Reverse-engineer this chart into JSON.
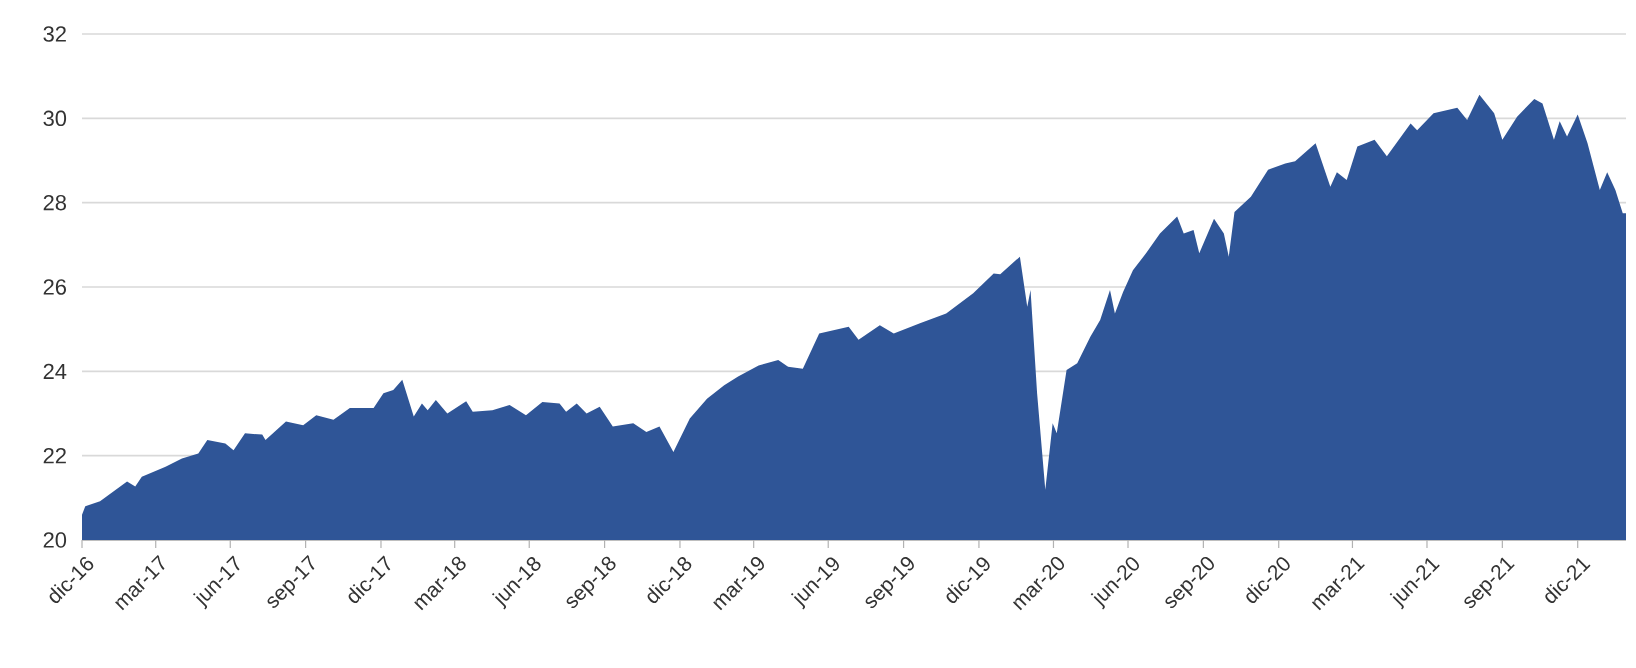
{
  "chart_data": {
    "type": "area",
    "color": "#2f5597",
    "grid": "y",
    "x": [
      "2016-12-31",
      "2017-01-04",
      "2017-01-22",
      "2017-02-24",
      "2017-03-06",
      "2017-03-14",
      "2017-04-12",
      "2017-05-02",
      "2017-05-22",
      "2017-06-02",
      "2017-06-24",
      "2017-07-04",
      "2017-07-18",
      "2017-08-08",
      "2017-08-12",
      "2017-09-06",
      "2017-09-27",
      "2017-10-13",
      "2017-11-03",
      "2017-11-23",
      "2017-12-22",
      "2018-01-03",
      "2018-01-15",
      "2018-01-26",
      "2018-02-09",
      "2018-02-19",
      "2018-02-26",
      "2018-03-08",
      "2018-03-22",
      "2018-04-14",
      "2018-04-22",
      "2018-05-16",
      "2018-06-06",
      "2018-06-26",
      "2018-07-16",
      "2018-08-06",
      "2018-08-14",
      "2018-08-27",
      "2018-09-08",
      "2018-09-24",
      "2018-10-10",
      "2018-11-04",
      "2018-11-20",
      "2018-12-06",
      "2018-12-23",
      "2019-01-12",
      "2019-02-02",
      "2019-02-23",
      "2019-03-12",
      "2019-04-06",
      "2019-04-30",
      "2019-05-12",
      "2019-05-30",
      "2019-06-19",
      "2019-07-25",
      "2019-08-06",
      "2019-09-01",
      "2019-09-18",
      "2019-10-20",
      "2019-11-21",
      "2019-12-24",
      "2020-01-18",
      "2020-01-26",
      "2020-02-19",
      "2020-02-28",
      "2020-03-03",
      "2020-03-11",
      "2020-03-21",
      "2020-03-30",
      "2020-04-04",
      "2020-04-16",
      "2020-04-29",
      "2020-05-15",
      "2020-05-27",
      "2020-06-08",
      "2020-06-14",
      "2020-06-24",
      "2020-07-06",
      "2020-07-22",
      "2020-08-08",
      "2020-08-29",
      "2020-09-06",
      "2020-09-18",
      "2020-09-25",
      "2020-10-13",
      "2020-10-25",
      "2020-10-31",
      "2020-11-07",
      "2020-11-27",
      "2020-12-18",
      "2021-01-08",
      "2021-01-20",
      "2021-02-14",
      "2021-03-04",
      "2021-03-12",
      "2021-03-24",
      "2021-04-06",
      "2021-04-27",
      "2021-05-12",
      "2021-06-10",
      "2021-06-18",
      "2021-07-08",
      "2021-08-06",
      "2021-08-18",
      "2021-09-02",
      "2021-09-20",
      "2021-09-30",
      "2021-10-18",
      "2021-11-08",
      "2021-11-18",
      "2021-12-02",
      "2021-12-09",
      "2021-12-18",
      "2021-12-31",
      "2022-01-12",
      "2022-01-27",
      "2022-02-05",
      "2022-02-15",
      "2022-02-24",
      "2022-02-28"
    ],
    "values": [
      20.6,
      20.8,
      20.92,
      21.39,
      21.27,
      21.5,
      21.74,
      21.93,
      22.05,
      22.37,
      22.29,
      22.13,
      22.53,
      22.5,
      22.37,
      22.81,
      22.72,
      22.96,
      22.85,
      23.13,
      23.13,
      23.48,
      23.56,
      23.8,
      22.93,
      23.24,
      23.08,
      23.32,
      23.0,
      23.29,
      23.04,
      23.08,
      23.2,
      22.96,
      23.27,
      23.24,
      23.04,
      23.24,
      23.0,
      23.16,
      22.69,
      22.77,
      22.56,
      22.69,
      22.09,
      22.88,
      23.35,
      23.67,
      23.88,
      24.14,
      24.27,
      24.11,
      24.06,
      24.9,
      25.06,
      24.75,
      25.09,
      24.9,
      25.14,
      25.37,
      25.85,
      26.32,
      26.3,
      26.72,
      25.53,
      25.93,
      23.48,
      21.19,
      22.77,
      22.53,
      24.03,
      24.19,
      24.82,
      25.22,
      25.93,
      25.37,
      25.88,
      26.4,
      26.8,
      27.27,
      27.67,
      27.27,
      27.35,
      26.8,
      27.62,
      27.27,
      26.72,
      27.78,
      28.14,
      28.78,
      28.93,
      28.98,
      29.41,
      28.38,
      28.72,
      28.54,
      29.33,
      29.49,
      29.1,
      29.88,
      29.72,
      30.12,
      30.25,
      29.96,
      30.56,
      30.12,
      29.49,
      30.04,
      30.46,
      30.35,
      29.49,
      29.93,
      29.57,
      30.09,
      29.41,
      28.3,
      28.72,
      28.3,
      27.75,
      27.75
    ],
    "xlim": [
      "2016-12-31",
      "2022-02-28"
    ],
    "xticks": [
      {
        "value": "2016-12-31",
        "label": "dic-16"
      },
      {
        "value": "2017-03-31",
        "label": "mar-17"
      },
      {
        "value": "2017-06-30",
        "label": "jun-17"
      },
      {
        "value": "2017-09-30",
        "label": "sep-17"
      },
      {
        "value": "2017-12-31",
        "label": "dic-17"
      },
      {
        "value": "2018-03-31",
        "label": "mar-18"
      },
      {
        "value": "2018-06-30",
        "label": "jun-18"
      },
      {
        "value": "2018-09-30",
        "label": "sep-18"
      },
      {
        "value": "2018-12-31",
        "label": "dic-18"
      },
      {
        "value": "2019-03-31",
        "label": "mar-19"
      },
      {
        "value": "2019-06-30",
        "label": "jun-19"
      },
      {
        "value": "2019-09-30",
        "label": "sep-19"
      },
      {
        "value": "2019-12-31",
        "label": "dic-19"
      },
      {
        "value": "2020-03-31",
        "label": "mar-20"
      },
      {
        "value": "2020-06-30",
        "label": "jun-20"
      },
      {
        "value": "2020-09-30",
        "label": "sep-20"
      },
      {
        "value": "2020-12-31",
        "label": "dic-20"
      },
      {
        "value": "2021-03-31",
        "label": "mar-21"
      },
      {
        "value": "2021-06-30",
        "label": "jun-21"
      },
      {
        "value": "2021-09-30",
        "label": "sep-21"
      },
      {
        "value": "2021-12-31",
        "label": "dic-21"
      }
    ],
    "ylim": [
      20,
      32
    ],
    "yticks": [
      20,
      22,
      24,
      26,
      28,
      30,
      32
    ]
  }
}
